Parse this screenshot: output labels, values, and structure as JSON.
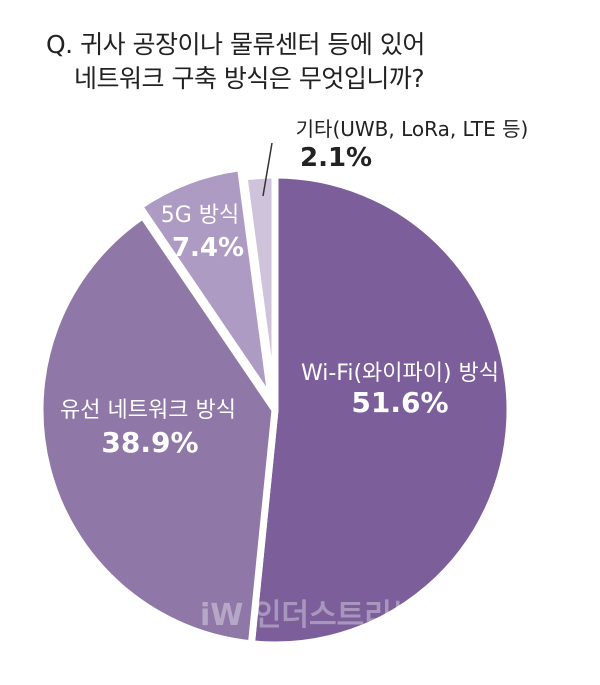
{
  "title": {
    "line1": "Q. 귀사 공장이나 물류센터 등에 있어",
    "line2": "네트워크 구축 방식은 무엇입니까?"
  },
  "chart_data": {
    "type": "pie",
    "slices": [
      {
        "name": "Wi-Fi(와이파이) 방식",
        "value": 51.6,
        "label": "51.6%",
        "color": "#7b5e9a"
      },
      {
        "name": "유선 네트워크 방식",
        "value": 38.9,
        "label": "38.9%",
        "color": "#8f78a8"
      },
      {
        "name": "5G 방식",
        "value": 7.4,
        "label": "7.4%",
        "color": "#ae9bc4"
      },
      {
        "name": "기타(UWB, LoRa, LTE 등)",
        "value": 2.1,
        "label": "2.1%",
        "color": "#cfc3dc"
      }
    ]
  },
  "colors": {
    "title": "#222222",
    "inside_label": "#ffffff",
    "outside_label": "#222222"
  },
  "watermark": "iW 인더스트리뉴스"
}
